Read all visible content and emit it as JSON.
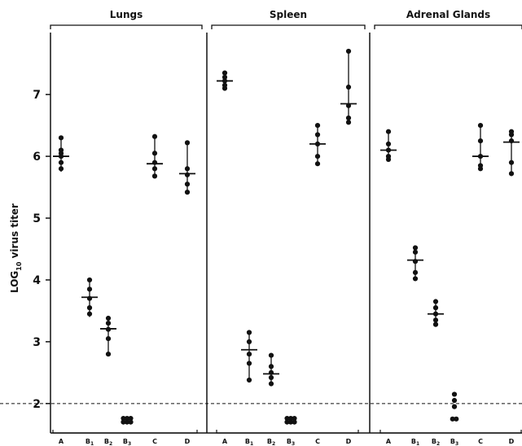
{
  "chart_data": {
    "type": "scatter",
    "ylabel_main": "LOG",
    "ylabel_sub": "10",
    "ylabel_rest": " virus titer",
    "yticks": [
      "2",
      "3",
      "4",
      "5",
      "6",
      "7"
    ],
    "ylim": [
      1.55,
      7.95
    ],
    "threshold": 2,
    "categories": [
      {
        "main": "A",
        "sub": ""
      },
      {
        "main": "B",
        "sub": "1"
      },
      {
        "main": "B",
        "sub": "2"
      },
      {
        "main": "B",
        "sub": "3"
      },
      {
        "main": "C",
        "sub": ""
      },
      {
        "main": "D",
        "sub": ""
      }
    ],
    "panels": [
      {
        "title": "Lungs",
        "groups": [
          {
            "values": [
              6.3,
              6.1,
              6.05,
              6.0,
              5.9,
              5.8
            ],
            "mean": 6.0,
            "range": [
              5.75,
              6.3
            ]
          },
          {
            "values": [
              4.0,
              3.85,
              3.7,
              3.55,
              3.45
            ],
            "mean": 3.72,
            "range": [
              3.4,
              4.0
            ]
          },
          {
            "values": [
              3.38,
              3.3,
              3.2,
              3.05,
              2.8
            ],
            "mean": 3.21,
            "range": [
              2.78,
              3.38
            ]
          },
          {
            "values": [
              1.76,
              1.76,
              1.76,
              1.7,
              1.7,
              1.7
            ],
            "mean": null,
            "range": null
          },
          {
            "values": [
              6.32,
              6.05,
              5.9,
              5.8,
              5.68
            ],
            "mean": 5.88,
            "range": [
              5.65,
              6.32
            ]
          },
          {
            "values": [
              6.22,
              5.8,
              5.7,
              5.55,
              5.42
            ],
            "mean": 5.72,
            "range": [
              5.4,
              6.22
            ]
          }
        ]
      },
      {
        "title": "Spleen",
        "groups": [
          {
            "values": [
              7.35,
              7.28,
              7.22,
              7.15,
              7.1
            ],
            "mean": 7.22,
            "range": [
              7.08,
              7.35
            ]
          },
          {
            "values": [
              3.15,
              3.0,
              2.8,
              2.65,
              2.38
            ],
            "mean": 2.87,
            "range": [
              2.35,
              3.15
            ]
          },
          {
            "values": [
              2.78,
              2.6,
              2.5,
              2.42,
              2.32
            ],
            "mean": 2.48,
            "range": [
              2.3,
              2.78
            ]
          },
          {
            "values": [
              1.76,
              1.76,
              1.76,
              1.7,
              1.7,
              1.7
            ],
            "mean": null,
            "range": null
          },
          {
            "values": [
              6.5,
              6.35,
              6.2,
              6.0,
              5.88
            ],
            "mean": 6.2,
            "range": [
              5.85,
              6.5
            ]
          },
          {
            "values": [
              7.7,
              7.12,
              6.82,
              6.62,
              6.55
            ],
            "mean": 6.85,
            "range": [
              6.55,
              7.7
            ]
          }
        ]
      },
      {
        "title": "Adrenal Glands",
        "groups": [
          {
            "values": [
              6.4,
              6.2,
              6.1,
              6.0,
              5.95
            ],
            "mean": 6.1,
            "range": [
              5.95,
              6.4
            ]
          },
          {
            "values": [
              4.52,
              4.45,
              4.3,
              4.12,
              4.02
            ],
            "mean": 4.32,
            "range": [
              4.0,
              4.52
            ]
          },
          {
            "values": [
              3.65,
              3.55,
              3.45,
              3.35,
              3.28
            ],
            "mean": 3.45,
            "range": [
              3.28,
              3.65
            ]
          },
          {
            "values": [
              2.15,
              2.05,
              1.95,
              1.75,
              1.75
            ],
            "mean": null,
            "range": null
          },
          {
            "values": [
              6.5,
              6.25,
              6.0,
              5.85,
              5.8
            ],
            "mean": 6.0,
            "range": [
              5.8,
              6.5
            ]
          },
          {
            "values": [
              6.4,
              6.35,
              6.25,
              5.9,
              5.72
            ],
            "mean": 6.23,
            "range": [
              5.72,
              6.4
            ]
          }
        ]
      }
    ]
  }
}
